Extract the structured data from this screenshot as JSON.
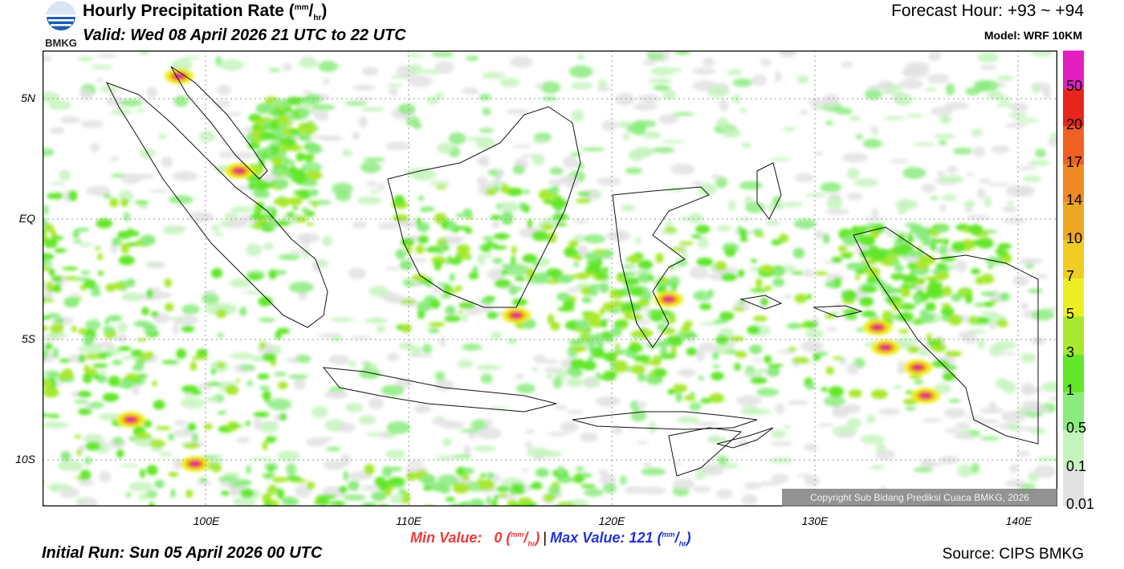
{
  "header": {
    "title_main": "Hourly Precipitation Rate (",
    "title_unit_sup": "mm",
    "title_unit_slash": "/",
    "title_unit_sub": "hr",
    "title_close": ")",
    "valid": "Valid: Wed 08 April 2026 21 UTC to 22 UTC",
    "forecast_hour": "Forecast Hour: +93 ~ +94",
    "model": "Model: WRF 10KM",
    "logo_text": "BMKG"
  },
  "map": {
    "lat_labels": [
      "5N",
      "EQ",
      "5S",
      "10S"
    ],
    "lon_labels": [
      "100E",
      "110E",
      "120E",
      "130E",
      "140E"
    ],
    "copyright": "Copyright Sub Bidang Prediksi Cuaca BMKG, 2026"
  },
  "legend": {
    "labels": [
      "50",
      "20",
      "17",
      "14",
      "10",
      "7",
      "5",
      "3",
      "1",
      "0.5",
      "0.1",
      "0.01"
    ],
    "colors": [
      "#e11fc3",
      "#e6261c",
      "#ee6123",
      "#f08a24",
      "#eda823",
      "#f0cd23",
      "#ecf023",
      "#a8e82d",
      "#64e629",
      "#8ceb7f",
      "#c6f3bd",
      "#e2e2e2"
    ]
  },
  "footer": {
    "min_label": "Min Value:",
    "min_value": "0",
    "max_label": "Max Value:",
    "max_value": "121",
    "unit_sup": "mm",
    "unit_slash": "/",
    "unit_sub": "hr",
    "separator": "|",
    "initial_run": "Initial Run: Sun 05 April 2026 00 UTC",
    "source": "Source: CIPS BMKG"
  }
}
